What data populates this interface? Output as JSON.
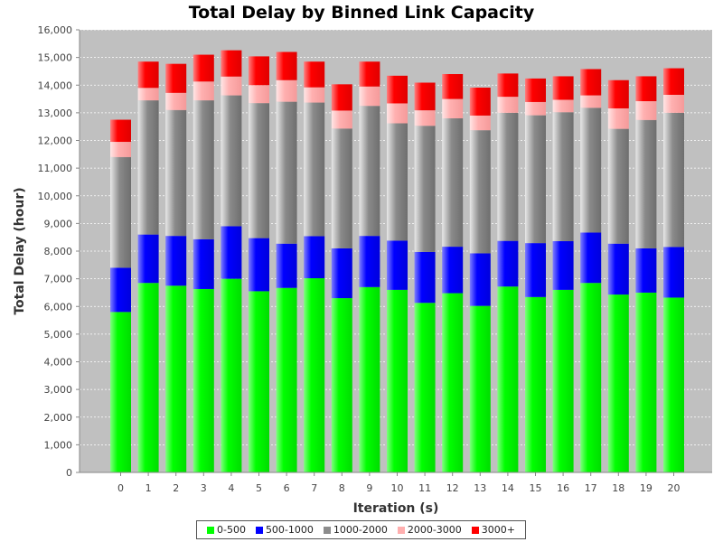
{
  "chart_data": {
    "type": "bar",
    "stacked": true,
    "title": "Total Delay by Binned Link Capacity",
    "xlabel": "Iteration (s)",
    "ylabel": "Total Delay (hour)",
    "categories": [
      "0",
      "1",
      "2",
      "3",
      "4",
      "5",
      "6",
      "7",
      "8",
      "9",
      "10",
      "11",
      "12",
      "13",
      "14",
      "15",
      "16",
      "17",
      "18",
      "19",
      "20"
    ],
    "ylim": [
      0,
      16000
    ],
    "yticks": [
      "0",
      "1,000",
      "2,000",
      "3,000",
      "4,000",
      "5,000",
      "6,000",
      "7,000",
      "8,000",
      "9,000",
      "10,000",
      "11,000",
      "12,000",
      "13,000",
      "14,000",
      "15,000",
      "16,000"
    ],
    "grid": true,
    "legend_position": "bottom",
    "series": [
      {
        "name": "0-500",
        "color": "#00ff00",
        "values": [
          5800,
          6850,
          6750,
          6630,
          7000,
          6550,
          6670,
          7020,
          6300,
          6700,
          6600,
          6130,
          6480,
          6020,
          6720,
          6340,
          6600,
          6850,
          6430,
          6500,
          6320
        ]
      },
      {
        "name": "500-1000",
        "color": "#0000ff",
        "values": [
          1600,
          1750,
          1800,
          1800,
          1900,
          1920,
          1600,
          1520,
          1800,
          1850,
          1780,
          1840,
          1680,
          1900,
          1650,
          1950,
          1760,
          1820,
          1840,
          1600,
          1830
        ]
      },
      {
        "name": "1000-2000",
        "color": "#8c8c8c",
        "values": [
          4000,
          4850,
          4550,
          5020,
          4730,
          4880,
          5130,
          4830,
          4330,
          4700,
          4240,
          4560,
          4640,
          4450,
          4630,
          4620,
          4660,
          4510,
          4150,
          4640,
          4850
        ]
      },
      {
        "name": "2000-3000",
        "color": "#ffafaf",
        "values": [
          550,
          450,
          620,
          680,
          680,
          650,
          780,
          550,
          650,
          700,
          720,
          560,
          700,
          530,
          580,
          480,
          450,
          450,
          740,
          680,
          650
        ]
      },
      {
        "name": "3000+",
        "color": "#ff0000",
        "values": [
          800,
          950,
          1050,
          970,
          950,
          1040,
          1020,
          930,
          950,
          900,
          1000,
          1000,
          900,
          1010,
          840,
          850,
          850,
          950,
          1020,
          900,
          960
        ]
      }
    ]
  }
}
